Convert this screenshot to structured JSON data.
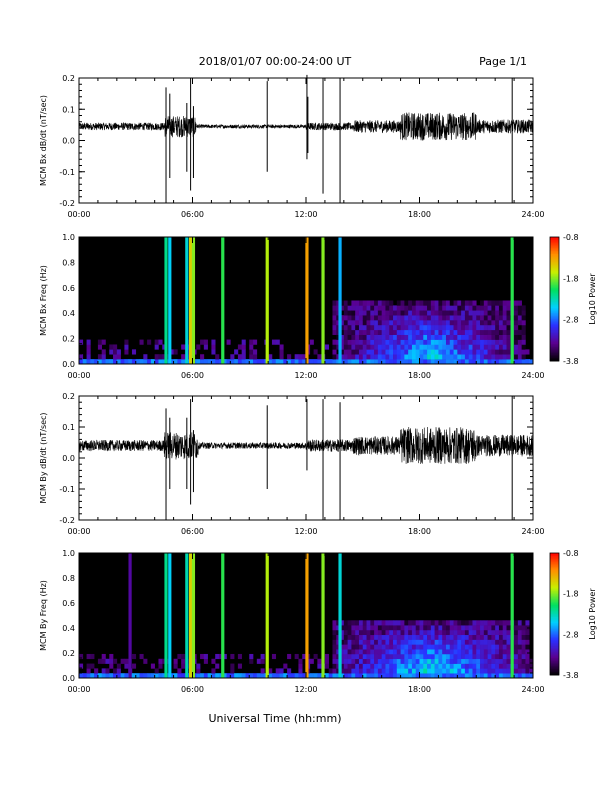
{
  "header": {
    "date_range": "2018/01/07  00:00-24:00 UT",
    "page": "Page 1/1"
  },
  "footer": {
    "xlabel": "Universal Time (hh:mm)"
  },
  "colorbar": {
    "label": "Log10 Power",
    "ticks": [
      "-0.8",
      "-1.8",
      "-2.8",
      "-3.8"
    ],
    "range": [
      -3.8,
      -0.8
    ],
    "colors": [
      "#000000",
      "#5a0090",
      "#2a30ff",
      "#00d0ff",
      "#00e060",
      "#c8f000",
      "#ff9000",
      "#ff0000"
    ]
  },
  "chart_data": [
    {
      "type": "line",
      "ylabel": "MCM Bx dB/dt (nT/sec)",
      "xlim": [
        0,
        24
      ],
      "ylim": [
        -0.2,
        0.2
      ],
      "xticks": [
        "00:00",
        "06:00",
        "12:00",
        "18:00",
        "24:00"
      ],
      "yticks": [
        "-0.2",
        "-0.1",
        "0.0",
        "0.1",
        "0.2"
      ],
      "baseline": 0.045,
      "noise": [
        {
          "t0": 0.0,
          "t1": 4.5,
          "amp": 0.012
        },
        {
          "t0": 4.5,
          "t1": 6.2,
          "amp": 0.035
        },
        {
          "t0": 6.2,
          "t1": 12.0,
          "amp": 0.006
        },
        {
          "t0": 12.0,
          "t1": 14.5,
          "amp": 0.012
        },
        {
          "t0": 14.5,
          "t1": 17.0,
          "amp": 0.02
        },
        {
          "t0": 17.0,
          "t1": 21.0,
          "amp": 0.045
        },
        {
          "t0": 21.0,
          "t1": 24.0,
          "amp": 0.022
        }
      ],
      "spikes": [
        {
          "t": 4.6,
          "lo": -0.2,
          "hi": 0.17
        },
        {
          "t": 4.8,
          "lo": -0.12,
          "hi": 0.15
        },
        {
          "t": 5.7,
          "lo": -0.1,
          "hi": 0.12
        },
        {
          "t": 5.9,
          "lo": -0.16,
          "hi": 0.2
        },
        {
          "t": 6.05,
          "lo": -0.12,
          "hi": 0.11
        },
        {
          "t": 9.95,
          "lo": -0.1,
          "hi": 0.19
        },
        {
          "t": 12.05,
          "lo": -0.06,
          "hi": 0.21
        },
        {
          "t": 12.1,
          "lo": -0.04,
          "hi": 0.14
        },
        {
          "t": 12.9,
          "lo": -0.17,
          "hi": 0.2
        },
        {
          "t": 13.8,
          "lo": -0.2,
          "hi": 0.2
        },
        {
          "t": 22.9,
          "lo": -0.2,
          "hi": 0.2
        }
      ]
    },
    {
      "type": "heatmap",
      "ylabel": "MCM Bx Freq (Hz)",
      "xlim": [
        0,
        24
      ],
      "ylim": [
        0.0,
        1.0
      ],
      "xticks": [
        "00:00",
        "06:00",
        "12:00",
        "18:00",
        "24:00"
      ],
      "yticks": [
        "0.0",
        "0.2",
        "0.4",
        "0.6",
        "0.8",
        "1.0"
      ],
      "bands": [
        {
          "t": 4.6,
          "level": -2.2
        },
        {
          "t": 4.8,
          "level": -2.5
        },
        {
          "t": 5.7,
          "level": -2.4
        },
        {
          "t": 5.9,
          "level": -1.5
        },
        {
          "t": 6.05,
          "level": -1.8
        },
        {
          "t": 7.6,
          "level": -2.0
        },
        {
          "t": 9.95,
          "level": -1.7
        },
        {
          "t": 12.05,
          "level": -1.3
        },
        {
          "t": 12.9,
          "level": -1.8
        },
        {
          "t": 13.8,
          "level": -2.6
        },
        {
          "t": 22.9,
          "level": -2.0
        }
      ],
      "activity": {
        "t0": 13.5,
        "t1": 23.5,
        "fmax": 0.5,
        "level": -2.9
      }
    },
    {
      "type": "line",
      "ylabel": "MCM By dB/dt (nT/sec)",
      "xlim": [
        0,
        24
      ],
      "ylim": [
        -0.2,
        0.2
      ],
      "xticks": [
        "00:00",
        "06:00",
        "12:00",
        "18:00",
        "24:00"
      ],
      "yticks": [
        "-0.2",
        "-0.1",
        "0.0",
        "0.1",
        "0.2"
      ],
      "baseline": 0.04,
      "noise": [
        {
          "t0": 0.0,
          "t1": 4.5,
          "amp": 0.018
        },
        {
          "t0": 4.5,
          "t1": 6.3,
          "amp": 0.045
        },
        {
          "t0": 6.3,
          "t1": 12.0,
          "amp": 0.01
        },
        {
          "t0": 12.0,
          "t1": 14.5,
          "amp": 0.02
        },
        {
          "t0": 14.5,
          "t1": 17.0,
          "amp": 0.03
        },
        {
          "t0": 17.0,
          "t1": 21.0,
          "amp": 0.06
        },
        {
          "t0": 21.0,
          "t1": 24.0,
          "amp": 0.035
        }
      ],
      "spikes": [
        {
          "t": 4.6,
          "lo": -0.2,
          "hi": 0.16
        },
        {
          "t": 4.8,
          "lo": -0.1,
          "hi": 0.13
        },
        {
          "t": 5.7,
          "lo": -0.1,
          "hi": 0.13
        },
        {
          "t": 5.9,
          "lo": -0.15,
          "hi": 0.19
        },
        {
          "t": 6.05,
          "lo": -0.11,
          "hi": 0.09
        },
        {
          "t": 9.95,
          "lo": -0.1,
          "hi": 0.17
        },
        {
          "t": 12.05,
          "lo": -0.04,
          "hi": 0.19
        },
        {
          "t": 12.9,
          "lo": -0.2,
          "hi": 0.19
        },
        {
          "t": 13.8,
          "lo": -0.2,
          "hi": 0.18
        },
        {
          "t": 22.9,
          "lo": -0.2,
          "hi": 0.2
        }
      ]
    },
    {
      "type": "heatmap",
      "ylabel": "MCM By Freq (Hz)",
      "xlim": [
        0,
        24
      ],
      "ylim": [
        0.0,
        1.0
      ],
      "xticks": [
        "00:00",
        "06:00",
        "12:00",
        "18:00",
        "24:00"
      ],
      "yticks": [
        "0.0",
        "0.2",
        "0.4",
        "0.6",
        "0.8",
        "1.0"
      ],
      "bands": [
        {
          "t": 2.7,
          "level": -3.3
        },
        {
          "t": 4.6,
          "level": -2.2
        },
        {
          "t": 4.8,
          "level": -2.5
        },
        {
          "t": 5.7,
          "level": -2.3
        },
        {
          "t": 5.9,
          "level": -1.5
        },
        {
          "t": 6.05,
          "level": -1.8
        },
        {
          "t": 7.6,
          "level": -2.0
        },
        {
          "t": 9.95,
          "level": -1.7
        },
        {
          "t": 12.05,
          "level": -1.3
        },
        {
          "t": 12.9,
          "level": -1.8
        },
        {
          "t": 13.8,
          "level": -2.4
        },
        {
          "t": 22.9,
          "level": -2.0
        }
      ],
      "activity": {
        "t0": 13.5,
        "t1": 23.8,
        "fmax": 0.45,
        "level": -2.8
      }
    }
  ]
}
